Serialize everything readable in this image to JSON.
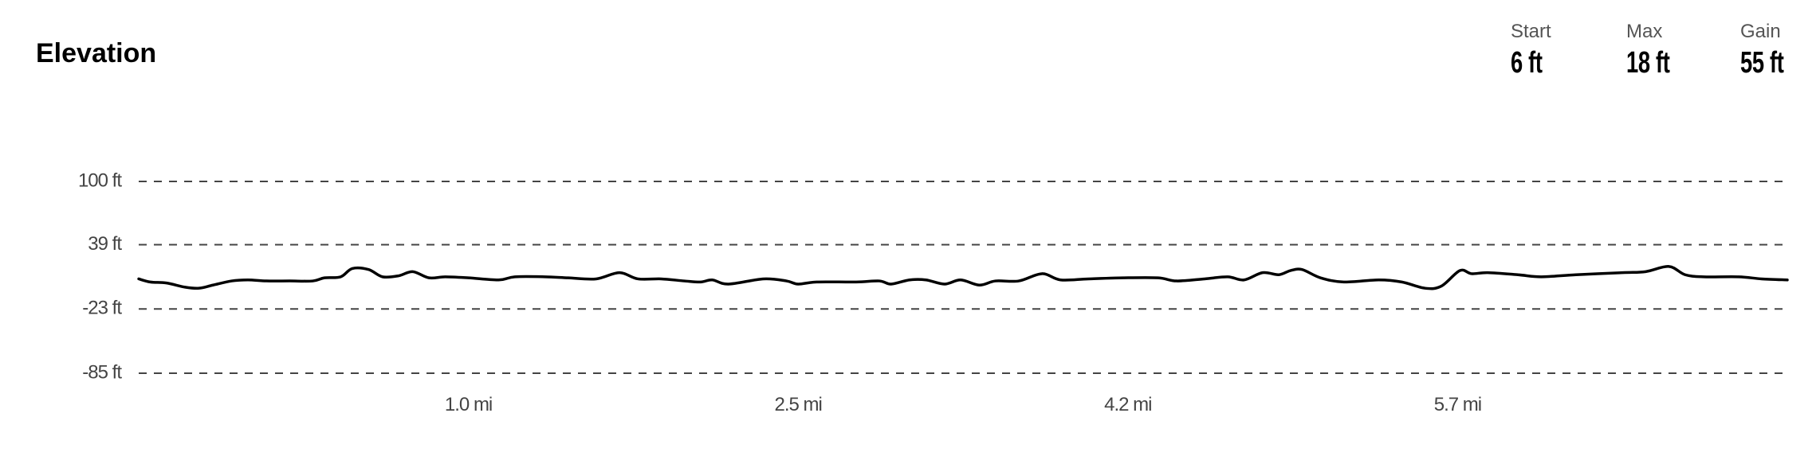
{
  "header": {
    "title": "Elevation",
    "stats": [
      {
        "label": "Start",
        "value": "6 ft"
      },
      {
        "label": "Max",
        "value": "18 ft"
      },
      {
        "label": "Gain",
        "value": "55 ft"
      }
    ]
  },
  "chart_data": {
    "type": "line",
    "title": "",
    "xlabel": "",
    "ylabel": "",
    "ylim": [
      -85,
      100
    ],
    "y_ticks": [
      {
        "value": 100,
        "label": "100 ft"
      },
      {
        "value": 39,
        "label": "39 ft"
      },
      {
        "value": -23,
        "label": "-23 ft"
      },
      {
        "value": -85,
        "label": "-85 ft"
      }
    ],
    "x_tick_labels": [
      "1.0 mi",
      "2.5 mi",
      "4.2 mi",
      "5.7 mi"
    ],
    "grid": "dashed horizontal",
    "line_color": "#000000",
    "series": [
      {
        "x_mi": [
          0,
          0.05,
          0.12,
          0.2,
          0.26,
          0.32,
          0.4,
          0.47,
          0.55,
          0.65,
          0.75,
          0.8,
          0.87,
          0.92,
          0.99,
          1.05,
          1.12,
          1.18,
          1.25,
          1.32,
          1.42,
          1.55,
          1.62,
          1.75,
          1.85,
          1.97,
          2.07,
          2.15,
          2.25,
          2.35,
          2.42,
          2.47,
          2.54,
          2.69,
          2.79,
          2.84,
          2.92,
          3.09,
          3.19,
          3.24,
          3.32,
          3.39,
          3.47,
          3.54,
          3.62,
          3.69,
          3.79,
          3.89,
          3.97,
          4.09,
          4.24,
          4.39,
          4.47,
          4.59,
          4.69,
          4.76,
          4.84,
          4.91,
          4.96,
          5.01,
          5.09,
          5.19,
          5.34,
          5.44,
          5.54,
          5.61,
          5.69,
          5.74,
          5.81,
          5.94,
          6.04,
          6.19,
          6.39,
          6.49,
          6.59,
          6.66,
          6.74,
          6.89,
          6.99,
          7.1
        ],
        "elevation_ft": [
          6,
          3,
          2,
          -2,
          -3,
          0,
          4,
          5,
          4,
          4,
          4,
          7,
          8,
          16,
          15,
          8,
          9,
          13,
          7,
          8,
          7,
          5,
          8,
          8,
          7,
          6,
          12,
          6,
          6,
          4,
          3,
          5,
          1,
          6,
          4,
          1,
          3,
          3,
          4,
          1,
          5,
          5,
          1,
          5,
          0,
          4,
          4,
          11,
          5,
          6,
          7,
          7,
          4,
          6,
          8,
          5,
          12,
          10,
          14,
          15,
          7,
          3,
          5,
          3,
          -3,
          -1,
          14,
          11,
          12,
          10,
          8,
          10,
          12,
          13,
          18,
          10,
          8,
          8,
          6,
          5
        ]
      }
    ]
  }
}
